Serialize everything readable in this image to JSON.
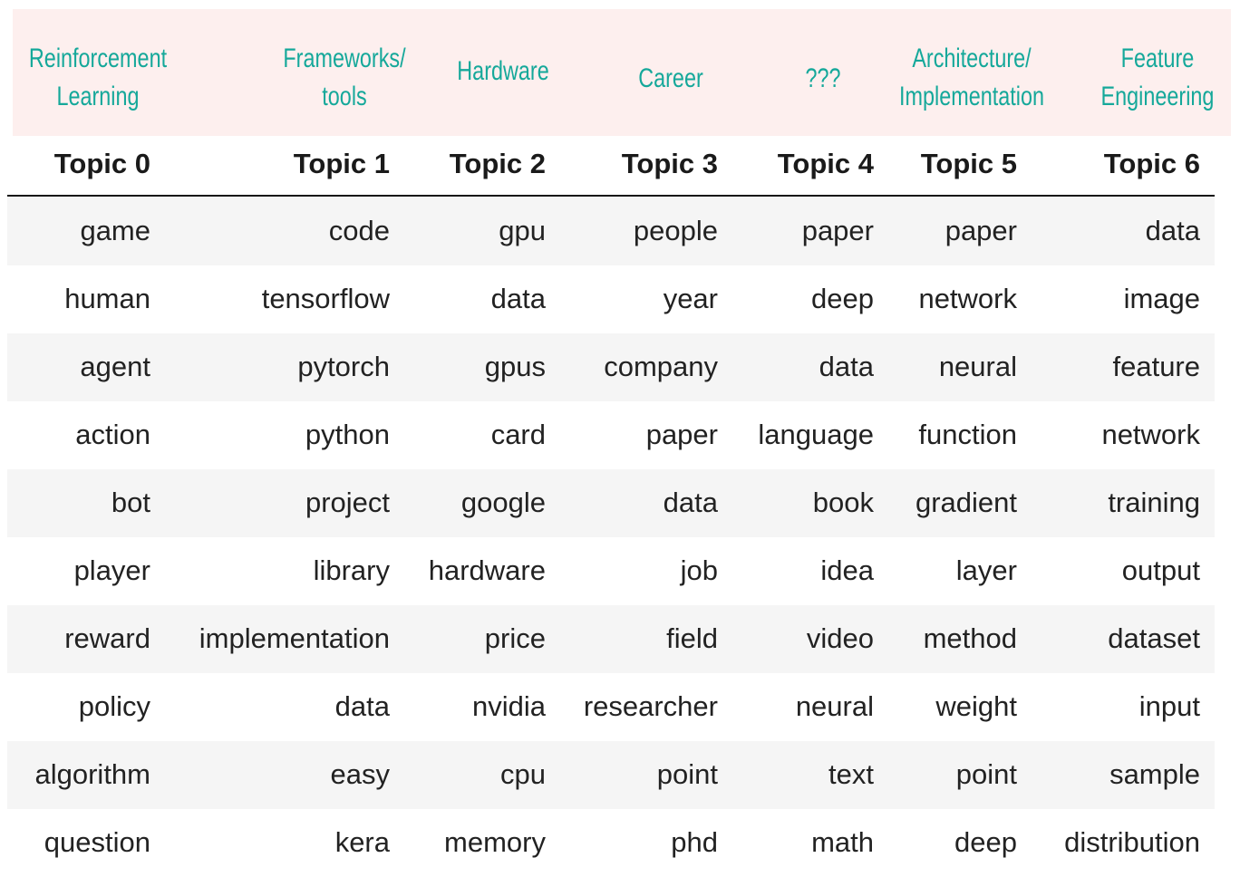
{
  "chart_data": {
    "type": "table",
    "title": "",
    "category_labels": [
      [
        "Reinforcement",
        "Learning"
      ],
      [
        "Frameworks/",
        "tools"
      ],
      [
        "Hardware"
      ],
      [
        "Career"
      ],
      [
        "???"
      ],
      [
        "Architecture/",
        "Implementation"
      ],
      [
        "Feature",
        "Engineering"
      ]
    ],
    "columns": [
      "Topic 0",
      "Topic 1",
      "Topic 2",
      "Topic 3",
      "Topic 4",
      "Topic 5",
      "Topic 6"
    ],
    "rows": [
      [
        "game",
        "code",
        "gpu",
        "people",
        "paper",
        "paper",
        "data"
      ],
      [
        "human",
        "tensorflow",
        "data",
        "year",
        "deep",
        "network",
        "image"
      ],
      [
        "agent",
        "pytorch",
        "gpus",
        "company",
        "data",
        "neural",
        "feature"
      ],
      [
        "action",
        "python",
        "card",
        "paper",
        "language",
        "function",
        "network"
      ],
      [
        "bot",
        "project",
        "google",
        "data",
        "book",
        "gradient",
        "training"
      ],
      [
        "player",
        "library",
        "hardware",
        "job",
        "idea",
        "layer",
        "output"
      ],
      [
        "reward",
        "implementation",
        "price",
        "field",
        "video",
        "method",
        "dataset"
      ],
      [
        "policy",
        "data",
        "nvidia",
        "researcher",
        "neural",
        "weight",
        "input"
      ],
      [
        "algorithm",
        "easy",
        "cpu",
        "point",
        "text",
        "point",
        "sample"
      ],
      [
        "question",
        "kera",
        "memory",
        "phd",
        "math",
        "deep",
        "distribution"
      ]
    ],
    "colors": {
      "label_text": "#15a89a",
      "banner_bg": "#fdefee",
      "row_shade": "#f5f5f5"
    }
  }
}
